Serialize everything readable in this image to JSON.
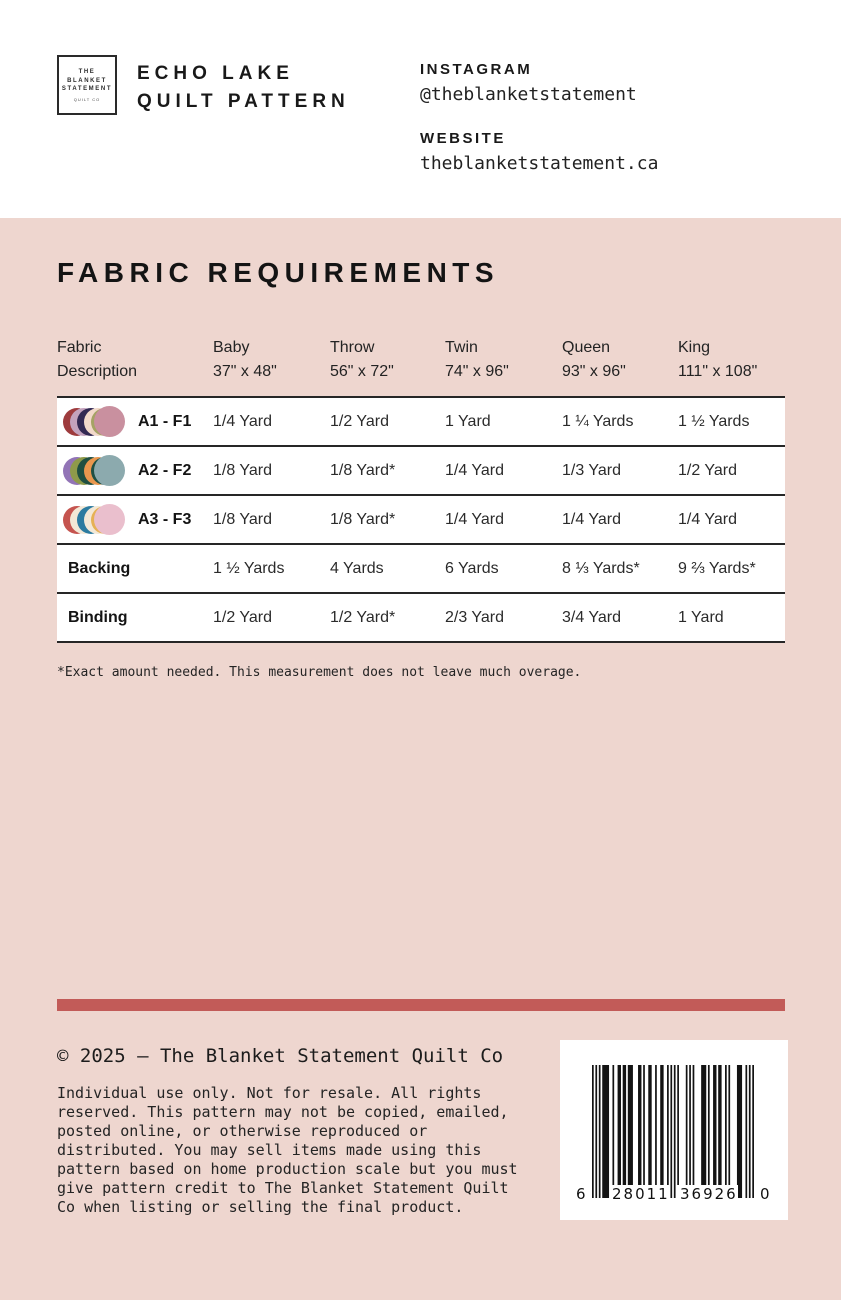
{
  "header": {
    "logo": {
      "line1": "THE",
      "line2": "BLANKET",
      "line3": "STATEMENT",
      "sub": "QUILT CO"
    },
    "title_line1": "ECHO LAKE",
    "title_line2": "QUILT PATTERN",
    "instagram_label": "INSTAGRAM",
    "instagram_handle": "@theblanketstatement",
    "website_label": "WEBSITE",
    "website_url": "theblanketstatement.ca"
  },
  "section": {
    "title": "FABRIC REQUIREMENTS"
  },
  "table": {
    "header": {
      "col0_line1": "Fabric",
      "col0_line2": "Description",
      "cols": [
        {
          "name": "Baby",
          "size": "37\" x 48\""
        },
        {
          "name": "Throw",
          "size": "56\" x 72\""
        },
        {
          "name": "Twin",
          "size": "74\" x 96\""
        },
        {
          "name": "Queen",
          "size": "93\" x 96\""
        },
        {
          "name": "King",
          "size": "111\" x 108\""
        }
      ]
    },
    "rows": [
      {
        "label": "A1 - F1",
        "swatch_colors": [
          "#9e3b3d",
          "#c3a2bd",
          "#322953",
          "#f2d9ca",
          "#a5a364",
          "#c9909f"
        ],
        "values": [
          "1/4 Yard",
          "1/2 Yard",
          "1 Yard",
          "1 ¼ Yards",
          "1 ½ Yards"
        ]
      },
      {
        "label": "A2 - F2",
        "swatch_colors": [
          "#9274b6",
          "#8f9a4a",
          "#1f4f41",
          "#e9974e",
          "#1f5044",
          "#8caaae"
        ],
        "values": [
          "1/8 Yard",
          "1/8 Yard*",
          "1/4 Yard",
          "1/3 Yard",
          "1/2 Yard"
        ]
      },
      {
        "label": "A3 - F3",
        "swatch_colors": [
          "#c5544f",
          "#f3e8d6",
          "#2c7ba0",
          "#f3e8d6",
          "#e6b155",
          "#eabfcd"
        ],
        "values": [
          "1/8 Yard",
          "1/8 Yard*",
          "1/4 Yard",
          "1/4 Yard",
          "1/4 Yard"
        ]
      },
      {
        "label": "Backing",
        "values": [
          "1 ½ Yards",
          "4 Yards",
          "6 Yards",
          "8 ⅓ Yards*",
          "9 ⅔ Yards*"
        ]
      },
      {
        "label": "Binding",
        "values": [
          "1/2 Yard",
          "1/2 Yard*",
          "2/3 Yard",
          "3/4 Yard",
          "1 Yard"
        ]
      }
    ],
    "footnote": "*Exact amount needed. This measurement does not leave much overage."
  },
  "footer": {
    "copyright": "© 2025 – The Blanket Statement Quilt Co",
    "legal": "Individual use only. Not for resale. All rights\nreserved. This pattern may not be copied, emailed,\nposted online, or otherwise reproduced or\ndistributed. You may sell items made using this\npattern based on home production scale but you must\ngive pattern credit to The Blanket Statement Quilt\nCo when listing or selling the final product.",
    "barcode": {
      "pattern": "10101011110010011011011100011010011001001100101010100001010100001110100110110010100001110010101",
      "digit_first": "6",
      "digit_group1": "28011",
      "digit_group2": "36926",
      "digit_last": "0"
    }
  },
  "colors": {
    "background_pink": "#eed6cf",
    "accent_red": "#c25b58"
  }
}
